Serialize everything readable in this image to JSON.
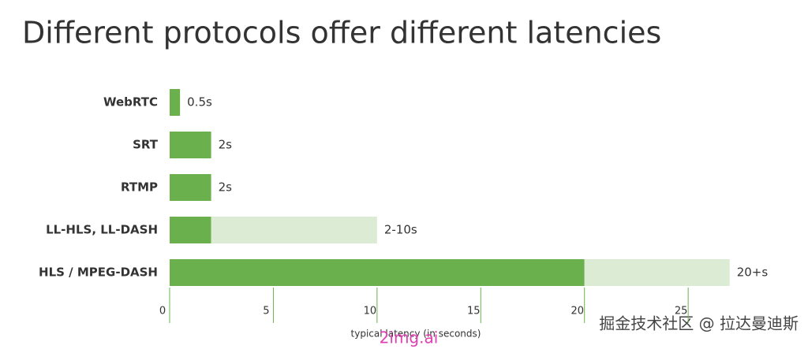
{
  "chart_data": {
    "type": "bar",
    "orientation": "horizontal",
    "stacked": true,
    "title": "Different protocols offer different latencies",
    "categories": [
      "WebRTC",
      "SRT",
      "RTMP",
      "LL-HLS, LL-DASH",
      "HLS / MPEG-DASH"
    ],
    "series": [
      {
        "color": "#6ab04c",
        "values": [
          0.5,
          2,
          2,
          2,
          20
        ],
        "value_labels": [
          "0.5s",
          "2s",
          "2s",
          "2-10s",
          "20+s"
        ]
      },
      {
        "color": "#dcebd4",
        "values": [
          null,
          null,
          null,
          8,
          7
        ]
      }
    ],
    "x_label": "typical latency (in seconds)",
    "xlim": [
      0,
      28
    ],
    "xticks": [
      0,
      5,
      10,
      15,
      20,
      25
    ],
    "grid": true,
    "annotations": [
      "2img.ai",
      "掘金技术社区 @ 拉达曼迪斯"
    ]
  }
}
